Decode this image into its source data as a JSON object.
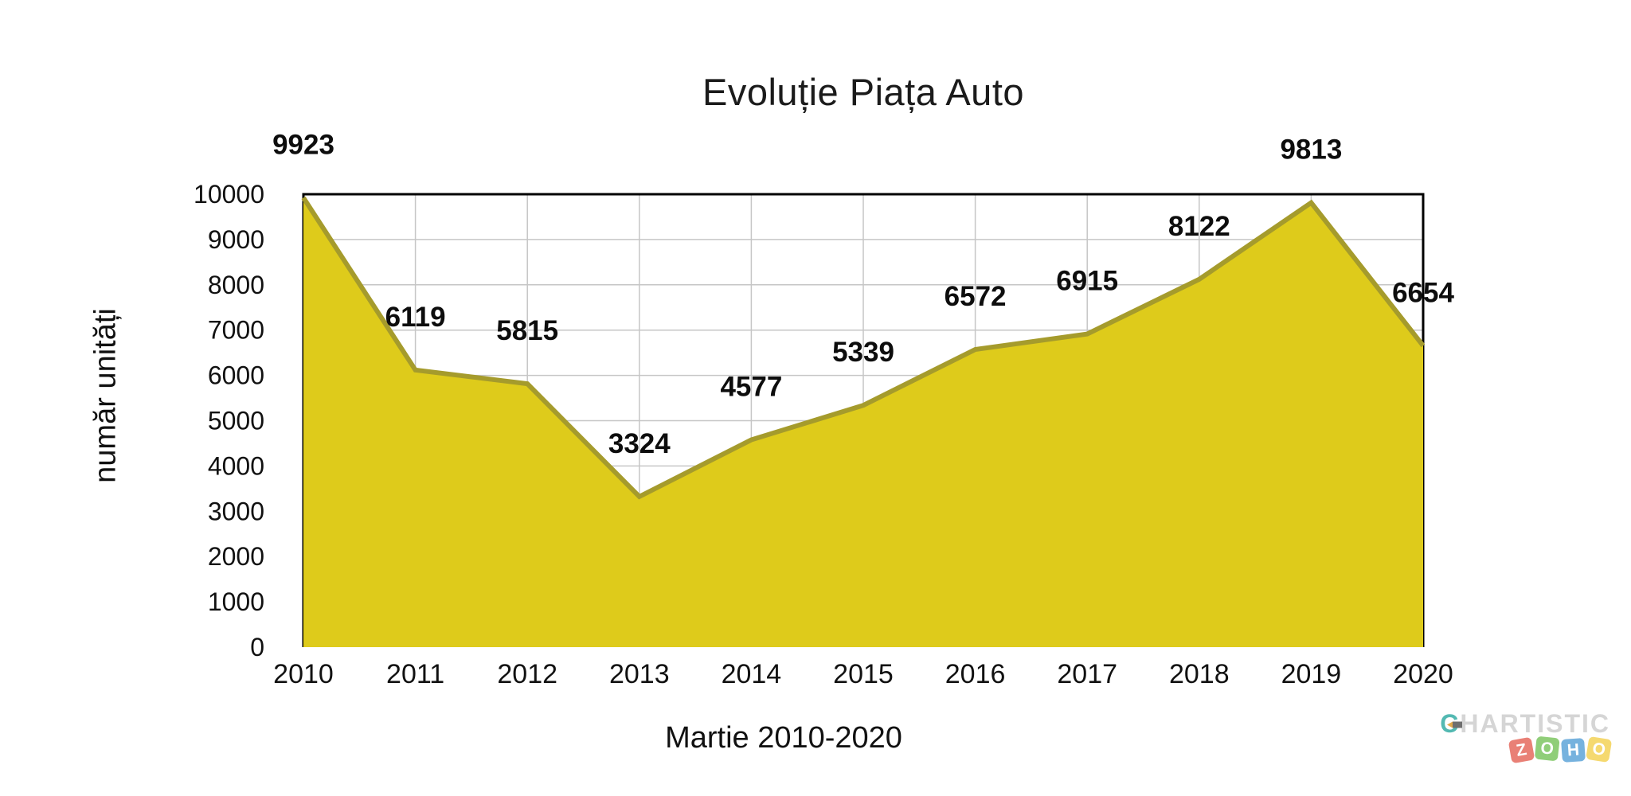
{
  "title": "Evoluție Piața Auto",
  "y_axis_title": "număr unități",
  "x_axis_title": "Martie 2010-2020",
  "colors": {
    "area_fill": "#decb1b",
    "line": "#a59b2c",
    "grid": "#c6c6c6",
    "border": "#000000",
    "text": "#111111",
    "data_label": "#0d0d0d"
  },
  "chart_data": {
    "type": "area",
    "categories": [
      "2010",
      "2011",
      "2012",
      "2013",
      "2014",
      "2015",
      "2016",
      "2017",
      "2018",
      "2019",
      "2020"
    ],
    "values": [
      9923,
      6119,
      5815,
      3324,
      4577,
      5339,
      6572,
      6915,
      8122,
      9813,
      6654
    ],
    "title": "Evoluție Piața Auto",
    "xlabel": "Martie 2010-2020",
    "ylabel": "număr unități",
    "ylim": [
      0,
      10000
    ],
    "y_ticks": [
      0,
      1000,
      2000,
      3000,
      4000,
      5000,
      6000,
      7000,
      8000,
      9000,
      10000
    ],
    "grid": true,
    "data_labels_shown": true,
    "legend": "none"
  },
  "watermark": {
    "brand_initial": "C",
    "brand_rest": "HARTISTIC",
    "brand_accent": "#45b4ac",
    "logo_letters": [
      "Z",
      "O",
      "H",
      "O"
    ],
    "logo_colors": [
      "#e2574b",
      "#6dbf4f",
      "#4a9ad4",
      "#f2cd42"
    ]
  }
}
